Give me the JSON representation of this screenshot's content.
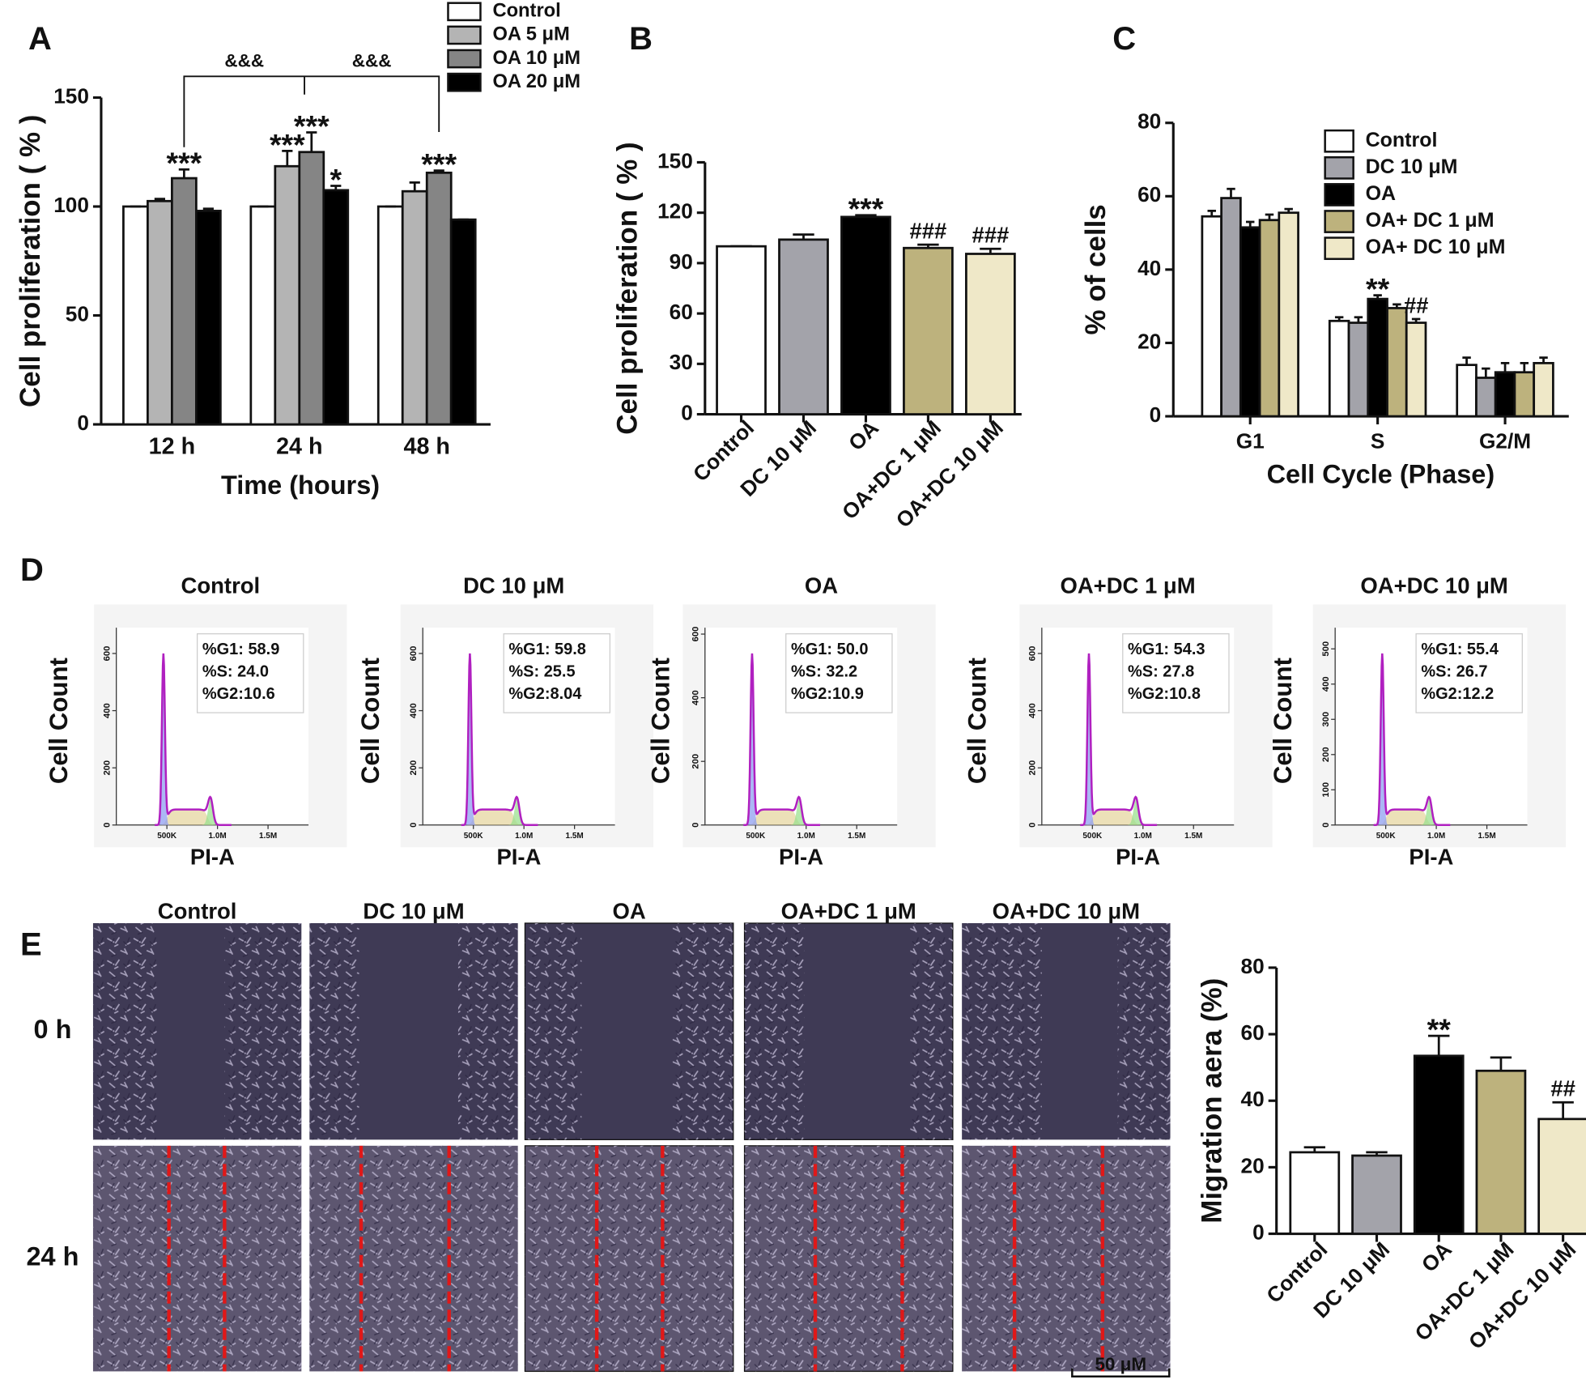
{
  "panel_labels": [
    "A",
    "B",
    "C",
    "D",
    "E"
  ],
  "chart_data": [
    {
      "type": "bar",
      "ylabel": "Cell proliferation ( % )",
      "xlabel": "Time (hours)",
      "categories": [
        "12 h",
        "24 h",
        "48 h"
      ],
      "series": [
        {
          "name": "Control",
          "color": "#ffffff",
          "values": [
            100,
            100,
            100
          ],
          "errors": [
            0,
            0,
            0
          ],
          "significance": [
            null,
            null,
            null
          ]
        },
        {
          "name": "OA 5 μM",
          "color": "#b4b4b4",
          "values": [
            102.5,
            118.5,
            107
          ],
          "errors": [
            1,
            7,
            4
          ],
          "significance": [
            null,
            "***",
            null
          ]
        },
        {
          "name": "OA 10 μM",
          "color": "#858585",
          "values": [
            113,
            125,
            115.5
          ],
          "errors": [
            4,
            9,
            1
          ],
          "significance": [
            "***",
            "***",
            "***"
          ]
        },
        {
          "name": "OA 20 μM",
          "color": "#000000",
          "values": [
            98,
            107.5,
            94
          ],
          "errors": [
            1,
            2,
            0
          ],
          "significance": [
            null,
            "*",
            null
          ]
        }
      ],
      "bracket_labels": [
        "&&&",
        "&&&"
      ],
      "ylim": [
        0,
        150
      ],
      "yticks": [
        0,
        50,
        100,
        150
      ],
      "legend": "top-right"
    },
    {
      "type": "bar",
      "ylabel": "Cell proliferation ( % )",
      "categories": [
        "Control",
        "DC 10 μM",
        "OA",
        "OA+DC 1 μM",
        "OA+DC 10 μM"
      ],
      "values": [
        100,
        104,
        117.5,
        99,
        95.5
      ],
      "errors": [
        0,
        3,
        1,
        2,
        3
      ],
      "colors": [
        "#ffffff",
        "#a3a3aa",
        "#000000",
        "#bdb27d",
        "#efe8c8"
      ],
      "significance": [
        null,
        null,
        "***",
        "###",
        "###"
      ],
      "ylim": [
        0,
        150
      ],
      "yticks": [
        0,
        30,
        60,
        90,
        120,
        150
      ]
    },
    {
      "type": "bar",
      "ylabel": "% of cells",
      "xlabel": "Cell Cycle (Phase)",
      "categories": [
        "G1",
        "S",
        "G2/M"
      ],
      "series": [
        {
          "name": "Control",
          "color": "#ffffff",
          "values": [
            54.5,
            26,
            14
          ],
          "errors": [
            1.5,
            1,
            2
          ],
          "significance": [
            null,
            null,
            null
          ]
        },
        {
          "name": "DC 10 μM",
          "color": "#a3a3aa",
          "values": [
            59.5,
            25.5,
            10.5
          ],
          "errors": [
            2.5,
            1.5,
            2.5
          ],
          "significance": [
            null,
            null,
            null
          ]
        },
        {
          "name": "OA",
          "color": "#000000",
          "values": [
            51.5,
            32,
            12
          ],
          "errors": [
            1.5,
            1,
            2.5
          ],
          "significance": [
            null,
            "**",
            null
          ]
        },
        {
          "name": "OA+ DC 1 μM",
          "color": "#bdb27d",
          "values": [
            53.5,
            29.5,
            12
          ],
          "errors": [
            1.5,
            1,
            2.5
          ],
          "significance": [
            null,
            null,
            null
          ]
        },
        {
          "name": "OA+ DC 10 μM",
          "color": "#efe8c8",
          "values": [
            55.5,
            25.5,
            14.5
          ],
          "errors": [
            1,
            1,
            1.5
          ],
          "significance": [
            null,
            "##",
            null
          ]
        }
      ],
      "ylim": [
        0,
        80
      ],
      "yticks": [
        0,
        20,
        40,
        60,
        80
      ],
      "legend": "top-right"
    },
    {
      "type": "bar",
      "ylabel": "Migration aera  (%)",
      "categories": [
        "Control",
        "DC 10 μM",
        "OA",
        "OA+DC 1 μM",
        "OA+DC 10 μM"
      ],
      "values": [
        24.5,
        23.5,
        53.5,
        49,
        34.5
      ],
      "errors": [
        1.5,
        1,
        6,
        4,
        5
      ],
      "colors": [
        "#ffffff",
        "#a3a3aa",
        "#000000",
        "#bdb27d",
        "#efe8c8"
      ],
      "significance": [
        null,
        null,
        "**",
        null,
        "##"
      ],
      "ylim": [
        0,
        80
      ],
      "yticks": [
        0,
        20,
        40,
        60,
        80
      ]
    }
  ],
  "flow_cytometry": {
    "ylabel": "Cell Count",
    "xlabel": "PI-A",
    "xlim": [
      0,
      1900000
    ],
    "xticks": [
      {
        "value": 500000,
        "label": "500K"
      },
      {
        "value": 1000000,
        "label": "1.0M"
      },
      {
        "value": 1500000,
        "label": "1.5M"
      }
    ],
    "panels": [
      {
        "title": "Control",
        "stats": [
          "%G1: 58.9",
          "%S: 24.0",
          "%G2:10.6"
        ],
        "ylim": [
          0,
          690
        ],
        "yticks": [
          0,
          200,
          400,
          600
        ]
      },
      {
        "title": "DC 10 μM",
        "stats": [
          "%G1: 59.8",
          "%S: 25.5",
          "%G2:8.04"
        ],
        "ylim": [
          0,
          690
        ],
        "yticks": [
          0,
          200,
          400,
          600
        ]
      },
      {
        "title": "OA",
        "stats": [
          "%G1: 50.0",
          "%S: 32.2",
          "%G2:10.9"
        ],
        "ylim": [
          0,
          620
        ],
        "yticks": [
          0,
          200,
          400,
          600
        ]
      },
      {
        "title": "OA+DC 1 μM",
        "stats": [
          "%G1: 54.3",
          "%S: 27.8",
          "%G2:10.8"
        ],
        "ylim": [
          0,
          690
        ],
        "yticks": [
          0,
          200,
          400,
          600
        ]
      },
      {
        "title": "OA+DC 10 μM",
        "stats": [
          "%G1: 55.4",
          "%S: 26.7",
          "%G2:12.2"
        ],
        "ylim": [
          0,
          560
        ],
        "yticks": [
          0,
          100,
          200,
          300,
          400,
          500
        ]
      }
    ]
  },
  "wound_healing": {
    "columns": [
      "Control",
      "DC 10 μM",
      "OA",
      "OA+DC 1 μM",
      "OA+DC 10 μM"
    ],
    "rows": [
      "0 h",
      "24 h"
    ],
    "scale_bar": "50  μM"
  }
}
